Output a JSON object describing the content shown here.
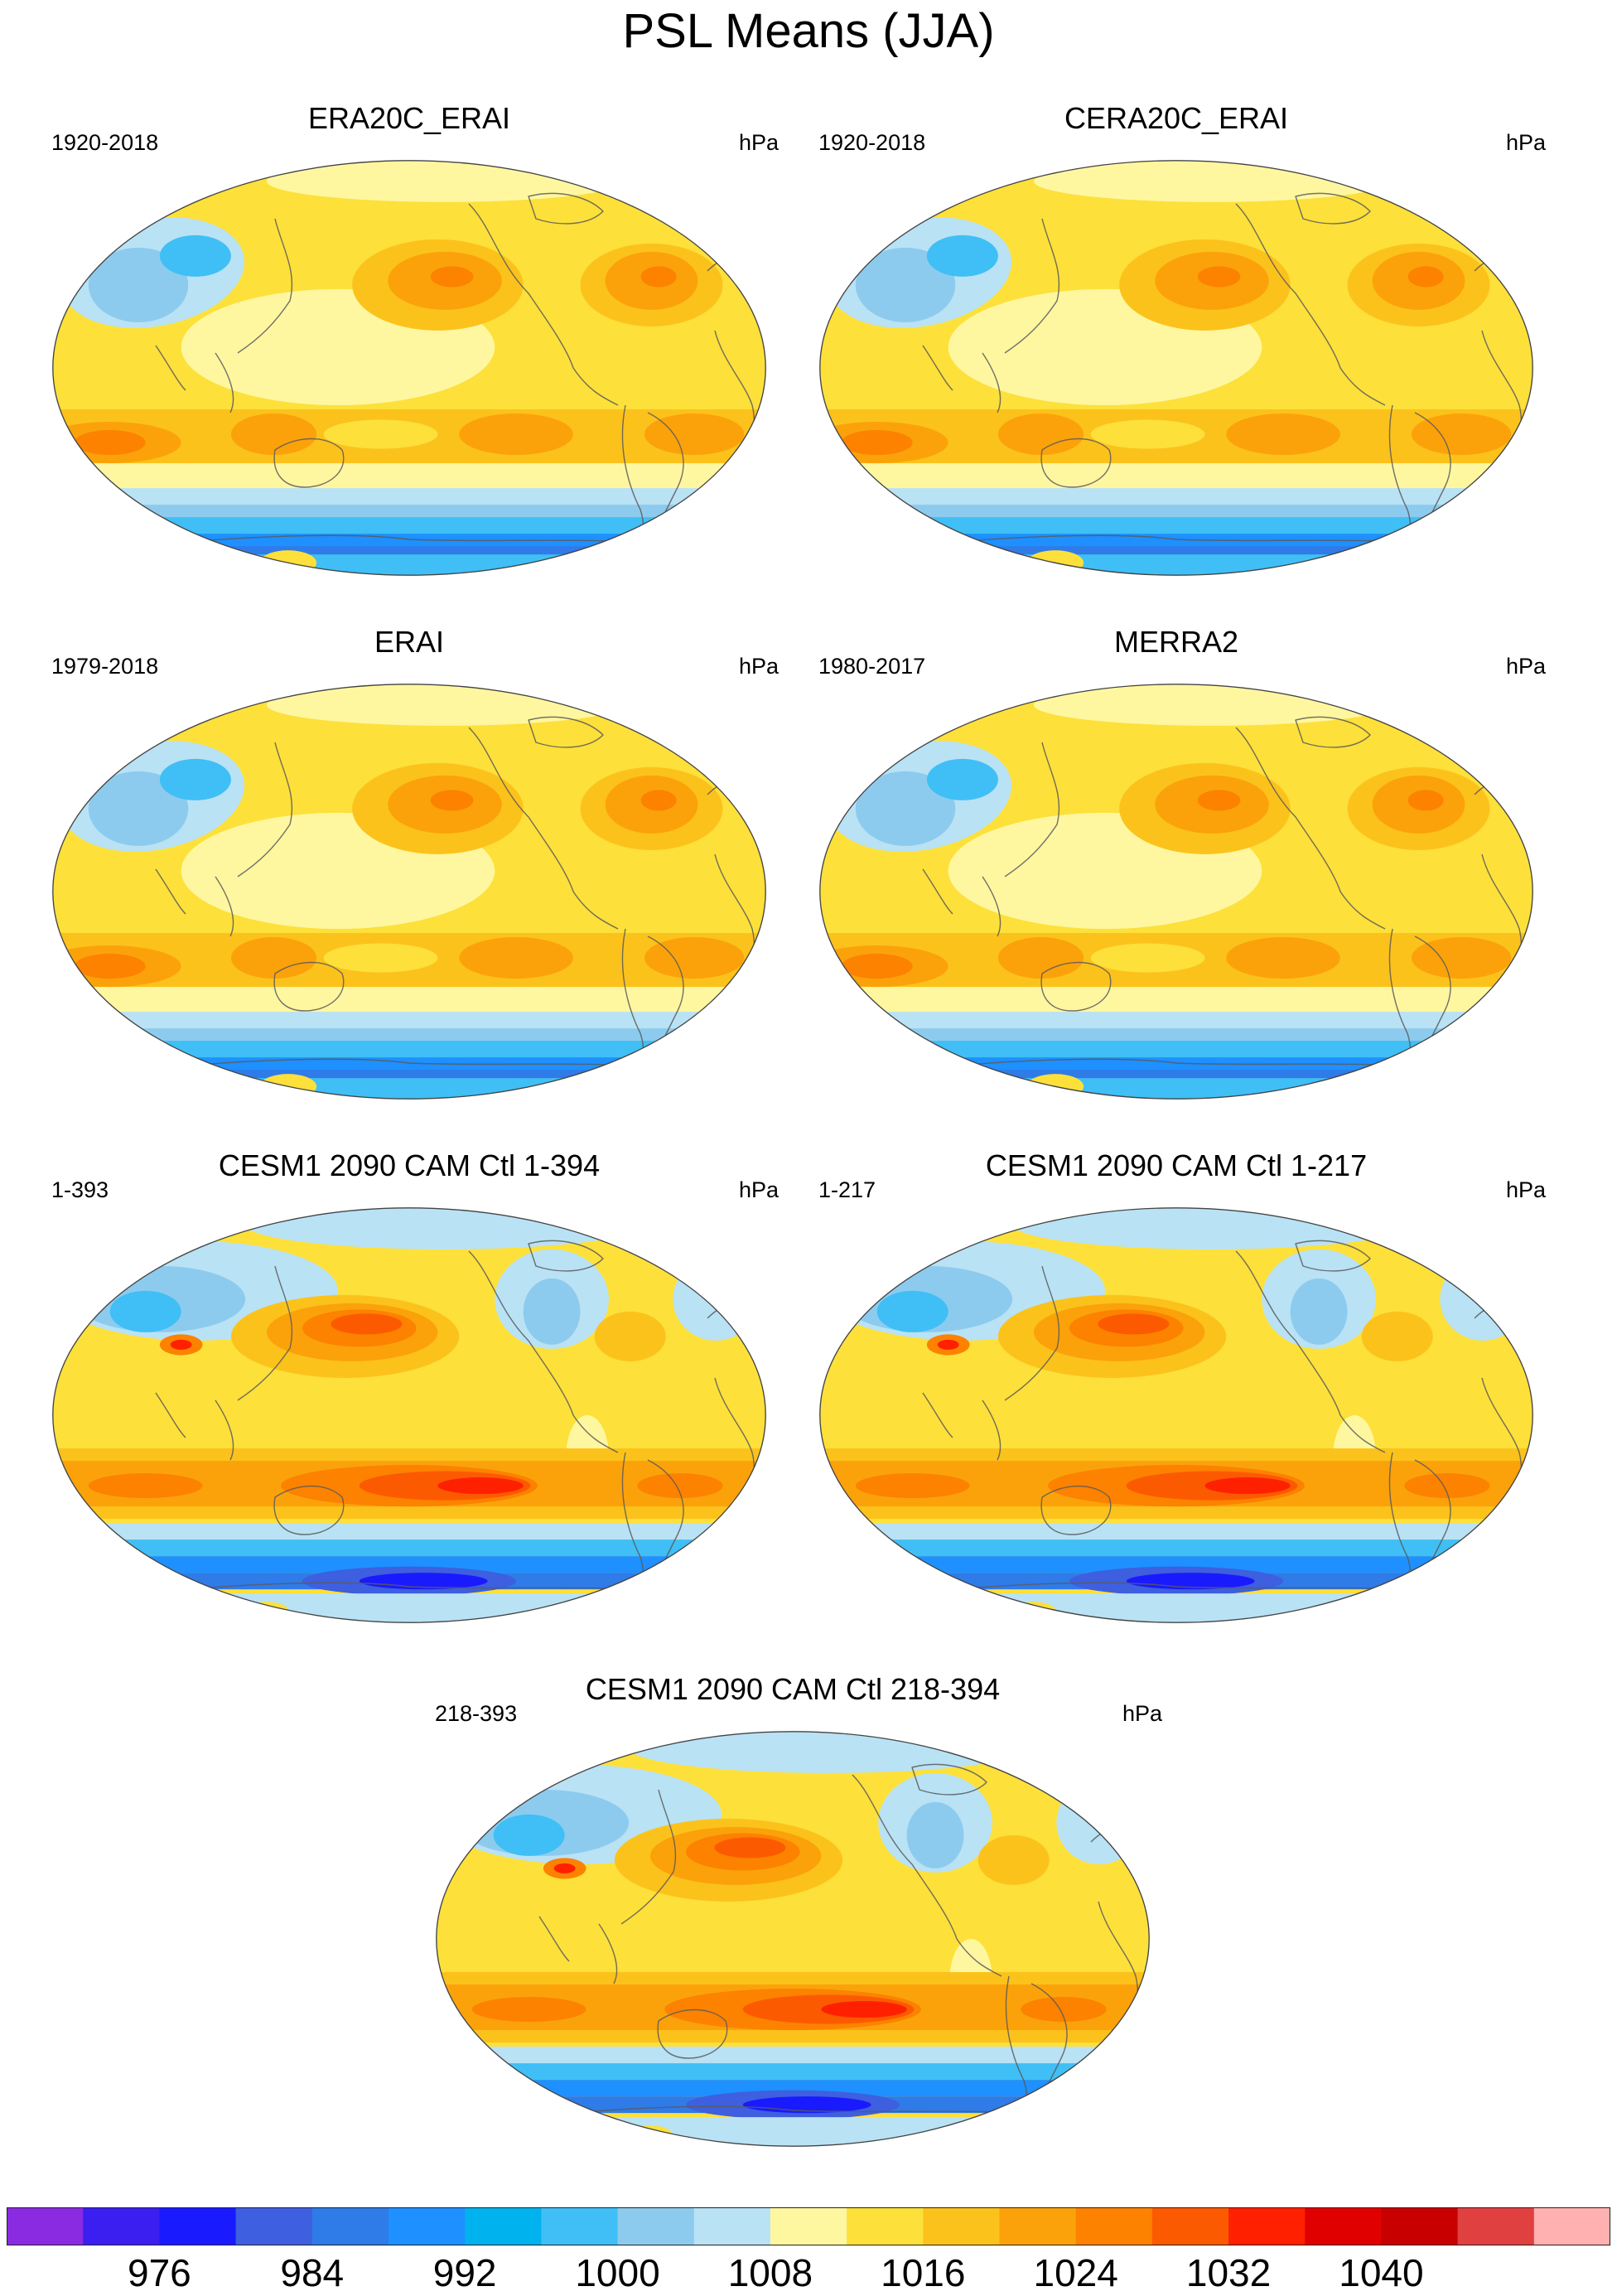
{
  "title": "PSL Means (JJA)",
  "panels": [
    {
      "title": "ERA20C_ERAI",
      "period": "1920-2018",
      "units": "hPa",
      "kind": "reanalysis"
    },
    {
      "title": "CERA20C_ERAI",
      "period": "1920-2018",
      "units": "hPa",
      "kind": "reanalysis"
    },
    {
      "title": "ERAI",
      "period": "1979-2018",
      "units": "hPa",
      "kind": "reanalysis"
    },
    {
      "title": "MERRA2",
      "period": "1980-2017",
      "units": "hPa",
      "kind": "reanalysis"
    },
    {
      "title": "CESM1 2090 CAM Ctl 1-394",
      "period": "1-393",
      "units": "hPa",
      "kind": "model"
    },
    {
      "title": "CESM1 2090 CAM Ctl 1-217",
      "period": "1-217",
      "units": "hPa",
      "kind": "model"
    },
    {
      "title": "CESM1 2090 CAM Ctl 218-394",
      "period": "218-393",
      "units": "hPa",
      "kind": "model"
    }
  ],
  "colorbar": {
    "labels": [
      "976",
      "984",
      "992",
      "1000",
      "1008",
      "1016",
      "1024",
      "1032",
      "1040"
    ],
    "colors": [
      "#8a2be2",
      "#3a1ff0",
      "#1a1aff",
      "#3d5fe0",
      "#2f7be8",
      "#1e90ff",
      "#00b2ee",
      "#3fbff5",
      "#8dcbee",
      "#b9e2f5",
      "#fff7a0",
      "#fde03a",
      "#fcc21c",
      "#fba20a",
      "#fc8200",
      "#fc5a00",
      "#ff2000",
      "#e00000",
      "#c80000",
      "#e04040",
      "#ffb0b0"
    ]
  }
}
